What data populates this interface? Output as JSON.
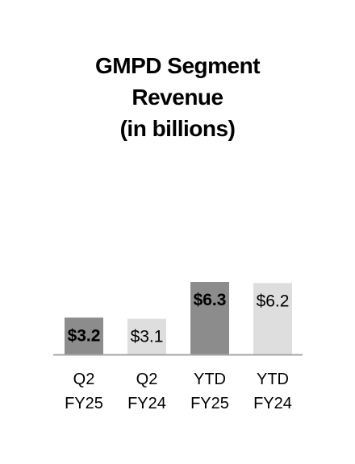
{
  "chart_data": {
    "type": "bar",
    "title_lines": [
      "GMPD Segment",
      "Revenue",
      "(in billions)"
    ],
    "categories": [
      [
        "Q2",
        "FY25"
      ],
      [
        "Q2",
        "FY24"
      ],
      [
        "YTD",
        "FY25"
      ],
      [
        "YTD",
        "FY24"
      ]
    ],
    "values": [
      3.2,
      3.1,
      6.3,
      6.2
    ],
    "value_labels": [
      "$3.2",
      "$3.1",
      "$6.3",
      "$6.2"
    ],
    "bar_colors": [
      "#8c8c8c",
      "#dedede",
      "#8c8c8c",
      "#dedede"
    ],
    "label_bold": [
      true,
      false,
      true,
      false
    ],
    "ylim": [
      0,
      6.3
    ],
    "xlabel": "",
    "ylabel": "",
    "grid": false,
    "axis_color": "#a6a6a6"
  }
}
